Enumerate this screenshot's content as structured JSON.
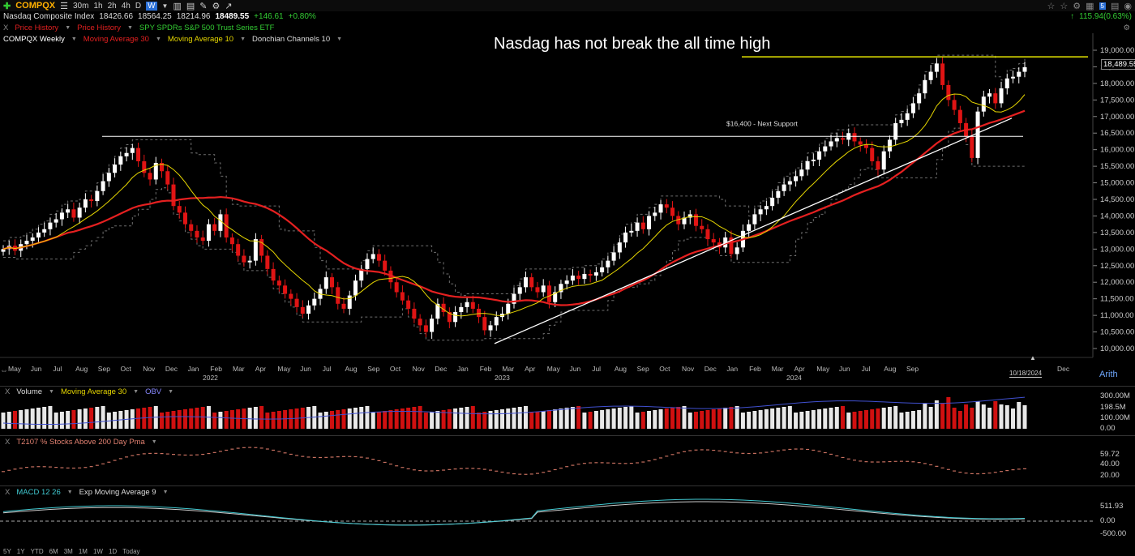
{
  "toolbar": {
    "symbol": "COMPQX",
    "timeframes": [
      "30m",
      "1h",
      "2h",
      "4h",
      "D",
      "W"
    ],
    "active_timeframe": "W",
    "right_value": "115.94(0.63%)"
  },
  "quote": {
    "name": "Nasdaq Composite Index",
    "open": "18426.66",
    "high": "18564.25",
    "low": "18214.96",
    "close": "18489.55",
    "change": "+146.61",
    "change_pct": "+0.80%"
  },
  "overlays_bar": {
    "close_x": "X",
    "item1": "Price History",
    "item2": "Price History",
    "item3": "SPY SPDRs S&P 500 Trust Series ETF"
  },
  "study_bar": {
    "title": "COMPQX Weekly",
    "ma30": "Moving Average 30",
    "ma10": "Moving Average 10",
    "donchian": "Donchian Channels 10"
  },
  "annotations": {
    "headline": "Nasdag has not break the all time high",
    "support": "$16,400 - Next Support"
  },
  "price_axis": {
    "ticks": [
      "19,000.00",
      "18,500.00",
      "18,000.00",
      "17,500.00",
      "17,000.00",
      "16,500.00",
      "16,000.00",
      "15,500.00",
      "15,000.00",
      "14,500.00",
      "14,000.00",
      "13,500.00",
      "13,000.00",
      "12,500.00",
      "12,000.00",
      "11,500.00",
      "11,000.00",
      "10,500.00",
      "10,000.00"
    ],
    "last_label": "18,489.55",
    "scale_mode": "Arith"
  },
  "time_axis": {
    "months": [
      "May",
      "Jun",
      "Jul",
      "Aug",
      "Sep",
      "Oct",
      "Nov",
      "Dec",
      "Jan",
      "Feb",
      "Mar",
      "Apr",
      "May",
      "Jun",
      "Jul",
      "Aug",
      "Sep",
      "Oct",
      "Nov",
      "Dec",
      "Jan",
      "Feb",
      "Mar",
      "Apr",
      "May",
      "Jun",
      "Jul",
      "Aug",
      "Sep",
      "Oct",
      "Nov",
      "Dec",
      "Jan",
      "Feb",
      "Mar",
      "Apr",
      "May",
      "Jun",
      "Jul",
      "Aug",
      "Sep",
      "Dec"
    ],
    "years": [
      "2022",
      "2023",
      "2024"
    ],
    "cursor_date": "10/18/2024"
  },
  "volume_pane": {
    "close_x": "X",
    "label": "Volume",
    "ma": "Moving Average 30",
    "obv": "OBV",
    "ticks": [
      "300.00M",
      "198.5M",
      "100.00M",
      "0.00"
    ]
  },
  "t2107_pane": {
    "close_x": "X",
    "label": "T2107 % Stocks Above 200 Day Pma",
    "ticks": [
      "59.72",
      "40.00",
      "20.00"
    ]
  },
  "macd_pane": {
    "close_x": "X",
    "label": "MACD 12 26",
    "signal": "Exp Moving Average 9",
    "ticks": [
      "511.93",
      "0.00",
      "-500.00"
    ]
  },
  "range_bar": [
    "5Y",
    "1Y",
    "YTD",
    "6M",
    "3M",
    "1M",
    "1W",
    "1D",
    "Today"
  ],
  "colors": {
    "up": "#ffffff",
    "down": "#e01414",
    "ma30": "#e52020",
    "ma10": "#e6d600",
    "donchian": "#6e6e6e",
    "ath_line": "#e6e600",
    "obv": "#4050d0",
    "t2107": "#c87060",
    "macd": "#40c8d0",
    "signal": "#cccccc"
  },
  "chart_data": {
    "type": "candlestick",
    "title": "COMPQX Weekly",
    "ylim": [
      10000,
      19000
    ],
    "weekly_close_approx": [
      13000,
      13100,
      12950,
      13150,
      13250,
      13350,
      13500,
      13600,
      13800,
      13900,
      14100,
      14200,
      13950,
      14250,
      14500,
      14450,
      14750,
      15050,
      15300,
      15550,
      15800,
      15900,
      16050,
      15650,
      15300,
      15100,
      15600,
      15350,
      14950,
      14300,
      14100,
      13750,
      13550,
      13350,
      13250,
      13750,
      13550,
      14050,
      13350,
      13150,
      12800,
      12600,
      12650,
      13300,
      12800,
      12400,
      12050,
      11900,
      11650,
      11500,
      11250,
      11050,
      11300,
      11500,
      11800,
      12150,
      11850,
      11350,
      11200,
      11600,
      12050,
      12400,
      12700,
      12850,
      12650,
      12350,
      12000,
      11700,
      11450,
      11200,
      10900,
      10700,
      10500,
      10900,
      11350,
      11100,
      10800,
      11100,
      11250,
      11400,
      11200,
      10950,
      10550,
      10700,
      10950,
      11050,
      11350,
      11650,
      11850,
      12150,
      11850,
      11700,
      11900,
      11400,
      11700,
      11950,
      12050,
      12200,
      12100,
      12250,
      12200,
      12300,
      12450,
      12650,
      12900,
      13200,
      13500,
      13550,
      13800,
      13600,
      14000,
      14100,
      14350,
      14250,
      14000,
      13750,
      13950,
      14050,
      13700,
      13600,
      13300,
      13200,
      13050,
      13350,
      12850,
      13050,
      13550,
      13750,
      14050,
      14200,
      14300,
      14550,
      14750,
      14950,
      15050,
      15200,
      15400,
      15650,
      15700,
      15950,
      16100,
      16250,
      16350,
      16300,
      16500,
      16250,
      16150,
      16050,
      15650,
      15400,
      15950,
      16300,
      16800,
      16900,
      17100,
      17400,
      17700,
      18100,
      18350,
      18600,
      17950,
      17500,
      17200,
      16800,
      16400,
      15750,
      17150,
      17600,
      17700,
      17400,
      17850,
      18150,
      18200,
      18350,
      18489.55
    ]
  }
}
